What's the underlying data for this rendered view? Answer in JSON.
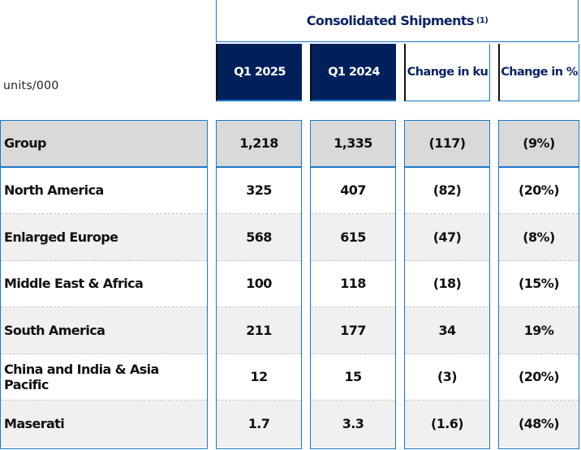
{
  "units": "units/000",
  "title": "Consolidated Shipments",
  "footnote": "(1)",
  "columns": [
    "Q1 2025",
    "Q1 2024",
    "Change in ku",
    "Change in %"
  ],
  "rows": [
    {
      "label": "Group",
      "values": [
        "1,218",
        "1,335",
        "(117)",
        "(9%)"
      ]
    },
    {
      "label": "North America",
      "values": [
        "325",
        "407",
        "(82)",
        "(20%)"
      ]
    },
    {
      "label": "Enlarged Europe",
      "values": [
        "568",
        "615",
        "(47)",
        "(8%)"
      ]
    },
    {
      "label": "Middle East & Africa",
      "values": [
        "100",
        "118",
        "(18)",
        "(15%)"
      ]
    },
    {
      "label": "South America",
      "values": [
        "211",
        "177",
        "34",
        "19%"
      ]
    },
    {
      "label": "China and India & Asia Pacific",
      "values": [
        "12",
        "15",
        "(3)",
        "(20%)"
      ]
    },
    {
      "label": "Maserati",
      "values": [
        "1.7",
        "3.3",
        "(1.6)",
        "(48%)"
      ]
    }
  ]
}
